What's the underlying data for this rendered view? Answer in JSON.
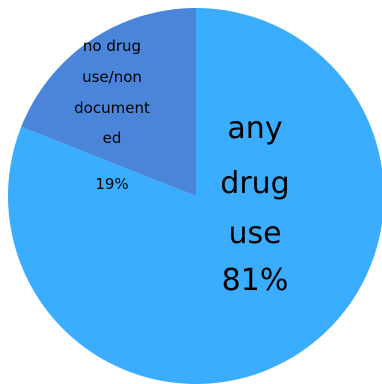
{
  "chart_data": {
    "type": "pie",
    "title": "",
    "slices": [
      {
        "label_lines": [
          "any",
          "drug",
          "use"
        ],
        "value": 81,
        "value_label": "81%",
        "color": "#3AADFF"
      },
      {
        "label_lines": [
          "no drug",
          "use/non",
          "document",
          "ed"
        ],
        "value": 19,
        "value_label": "19%",
        "color": "#4A85DA"
      }
    ],
    "start_angle_deg": 0,
    "direction": "clockwise",
    "legend": "none"
  }
}
